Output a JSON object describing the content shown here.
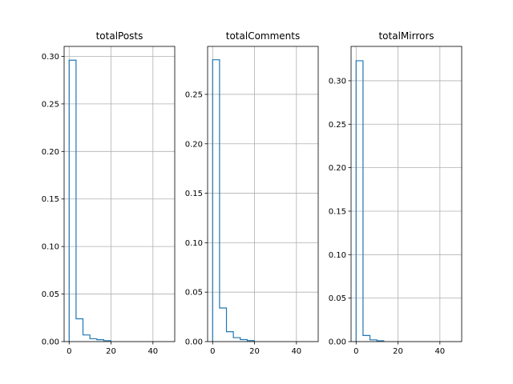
{
  "chart_data": [
    {
      "type": "histogram",
      "title": "totalPosts",
      "xlabel": "",
      "ylabel": "",
      "xlim": [
        -2.4,
        50.4
      ],
      "ylim": [
        0,
        0.3105
      ],
      "x_ticks": [
        0,
        20,
        40
      ],
      "y_ticks": [
        0.0,
        0.05,
        0.1,
        0.15,
        0.2,
        0.25,
        0.3
      ],
      "y_tick_labels": [
        "0.00",
        "0.05",
        "0.10",
        "0.15",
        "0.20",
        "0.25",
        "0.30"
      ],
      "bin_edges": [
        0,
        3.3,
        6.6,
        9.9,
        13.2,
        16.5,
        19.8
      ],
      "values": [
        0.296,
        0.024,
        0.007,
        0.003,
        0.002,
        0.001
      ],
      "grid": true,
      "style": "step",
      "color": "#1f77b4"
    },
    {
      "type": "histogram",
      "title": "totalComments",
      "xlabel": "",
      "ylabel": "",
      "xlim": [
        -2.4,
        50.4
      ],
      "ylim": [
        0,
        0.2985
      ],
      "x_ticks": [
        0,
        20,
        40
      ],
      "y_ticks": [
        0.0,
        0.05,
        0.1,
        0.15,
        0.2,
        0.25
      ],
      "y_tick_labels": [
        "0.00",
        "0.05",
        "0.10",
        "0.15",
        "0.20",
        "0.25"
      ],
      "bin_edges": [
        0,
        3.3,
        6.6,
        9.9,
        13.2,
        16.5,
        19.8
      ],
      "values": [
        0.285,
        0.034,
        0.01,
        0.004,
        0.002,
        0.001
      ],
      "grid": true,
      "style": "step",
      "color": "#1f77b4"
    },
    {
      "type": "histogram",
      "title": "totalMirrors",
      "xlabel": "",
      "ylabel": "",
      "xlim": [
        -2.4,
        50.4
      ],
      "ylim": [
        0,
        0.3395
      ],
      "x_ticks": [
        0,
        20,
        40
      ],
      "y_ticks": [
        0.0,
        0.05,
        0.1,
        0.15,
        0.2,
        0.25,
        0.3
      ],
      "y_tick_labels": [
        "0.00",
        "0.05",
        "0.10",
        "0.15",
        "0.20",
        "0.25",
        "0.30"
      ],
      "bin_edges": [
        0,
        3.3,
        6.6,
        9.9,
        13.2
      ],
      "values": [
        0.323,
        0.007,
        0.002,
        0.001
      ],
      "grid": true,
      "style": "step",
      "color": "#1f77b4"
    }
  ]
}
